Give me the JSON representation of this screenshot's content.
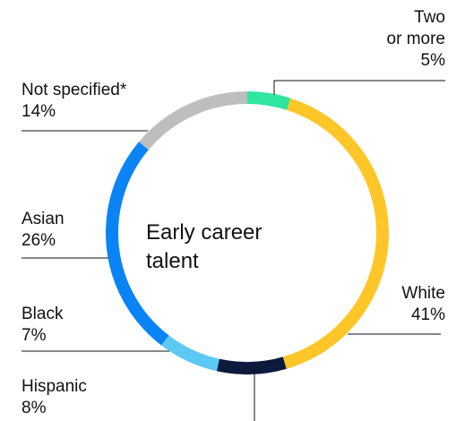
{
  "chart_data": {
    "type": "pie",
    "variant": "donut",
    "title": "Early career talent",
    "title_lines": [
      "Early career",
      "talent"
    ],
    "series": [
      {
        "name": "Two or more",
        "label_lines": [
          "Two",
          "or more"
        ],
        "value": 5,
        "value_label": "5%",
        "color": "#2EE6A0"
      },
      {
        "name": "White",
        "label_lines": [
          "White"
        ],
        "value": 41,
        "value_label": "41%",
        "color": "#FFC629"
      },
      {
        "name": "Hispanic",
        "label_lines": [
          "Hispanic"
        ],
        "value": 8,
        "value_label": "8%",
        "color": "#0B1A3D"
      },
      {
        "name": "Black",
        "label_lines": [
          "Black"
        ],
        "value": 7,
        "value_label": "7%",
        "color": "#5CC9F5"
      },
      {
        "name": "Asian",
        "label_lines": [
          "Asian"
        ],
        "value": 26,
        "value_label": "26%",
        "color": "#0A84F5"
      },
      {
        "name": "Not specified*",
        "label_lines": [
          "Not specified*"
        ],
        "value": 14,
        "value_label": "14%",
        "color": "#BDBEC0"
      }
    ]
  }
}
